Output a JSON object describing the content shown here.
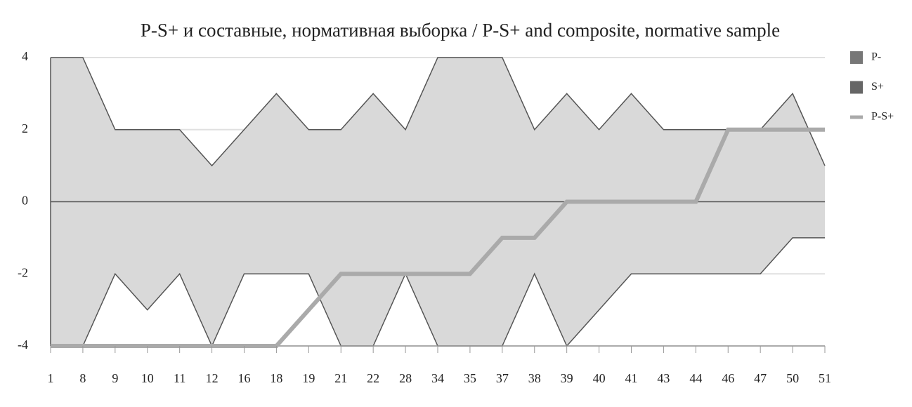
{
  "chart_data": {
    "type": "area-line",
    "title": "P-S+ и составные, нормативная выборка / P-S+ and composite, normative sample",
    "categories": [
      "1",
      "8",
      "9",
      "10",
      "11",
      "12",
      "16",
      "18",
      "19",
      "21",
      "22",
      "28",
      "34",
      "35",
      "37",
      "38",
      "39",
      "40",
      "41",
      "43",
      "44",
      "46",
      "47",
      "50",
      "51"
    ],
    "series": [
      {
        "name": "P-",
        "color": "#777777",
        "kind": "area",
        "values": [
          4,
          4,
          2,
          2,
          2,
          1,
          2,
          3,
          2,
          2,
          3,
          2,
          4,
          4,
          4,
          2,
          3,
          2,
          3,
          2,
          2,
          2,
          2,
          3,
          1
        ]
      },
      {
        "name": "S+",
        "color": "#666666",
        "kind": "area",
        "values": [
          -4,
          -4,
          -2,
          -3,
          -2,
          -4,
          -2,
          -2,
          -2,
          -4,
          -4,
          -2,
          -4,
          -4,
          -4,
          -2,
          -4,
          -3,
          -2,
          -2,
          -2,
          -2,
          -2,
          -1,
          -1
        ]
      },
      {
        "name": "P-S+",
        "color": "#aaaaaa",
        "kind": "line",
        "values": [
          -4,
          -4,
          -4,
          -4,
          -4,
          -4,
          -4,
          -4,
          -3,
          -2,
          -2,
          -2,
          -2,
          -2,
          -1,
          -1,
          0,
          0,
          0,
          0,
          0,
          2,
          2,
          2,
          2
        ]
      }
    ],
    "ylim": [
      -4,
      4
    ],
    "yticks": [
      -4,
      -2,
      0,
      2,
      4
    ],
    "grid": true,
    "legend": "right"
  }
}
